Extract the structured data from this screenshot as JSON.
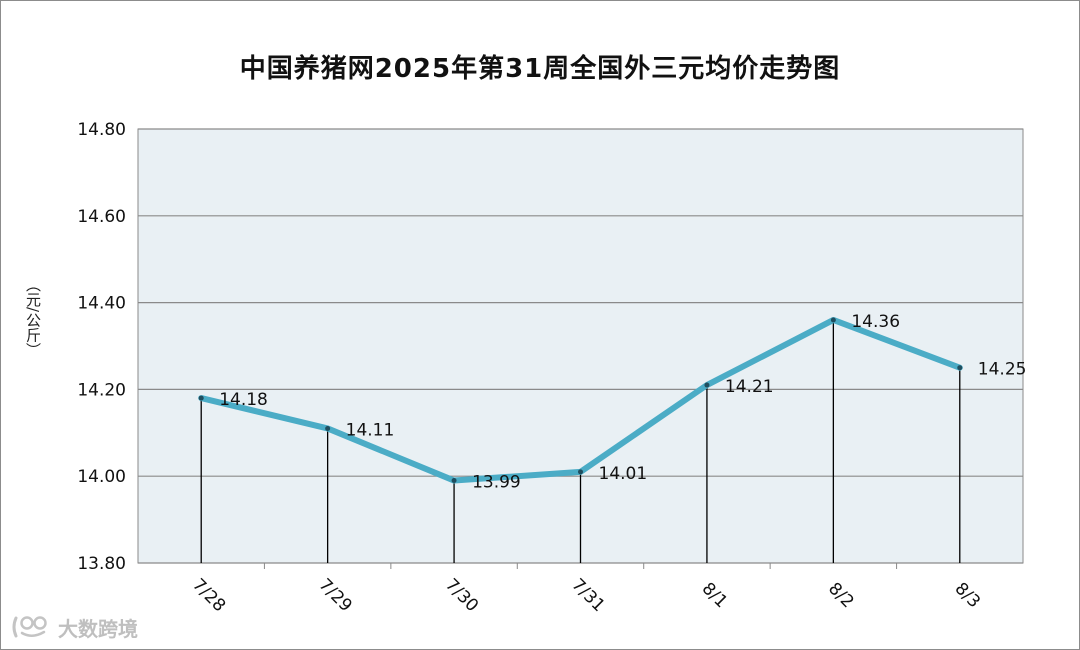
{
  "chart_data": {
    "type": "line",
    "title": "中国养猪网2025年第31周全国外三元均价走势图",
    "ylabel": "（元/公斤）",
    "xlabel": "",
    "categories": [
      "7/28",
      "7/29",
      "7/30",
      "7/31",
      "8/1",
      "8/2",
      "8/3"
    ],
    "series": [
      {
        "values": [
          14.18,
          14.11,
          13.99,
          14.01,
          14.21,
          14.36,
          14.25
        ],
        "color": "#4bacc6"
      }
    ],
    "data_labels": [
      "14.18",
      "14.11",
      "13.99",
      "14.01",
      "14.21",
      "14.36",
      "14.25"
    ],
    "ylim": [
      13.8,
      14.8
    ],
    "yticks": [
      "13.80",
      "14.00",
      "14.20",
      "14.40",
      "14.60",
      "14.80"
    ],
    "ytick_values": [
      13.8,
      14.0,
      14.2,
      14.4,
      14.6,
      14.8
    ],
    "grid": true,
    "drop_lines": true,
    "legend": "none",
    "plot_background": "#e9f0f4",
    "gridline_color": "#8a8a8a"
  },
  "watermark": {
    "text": "大数跨境",
    "icon": "logo-icon"
  }
}
